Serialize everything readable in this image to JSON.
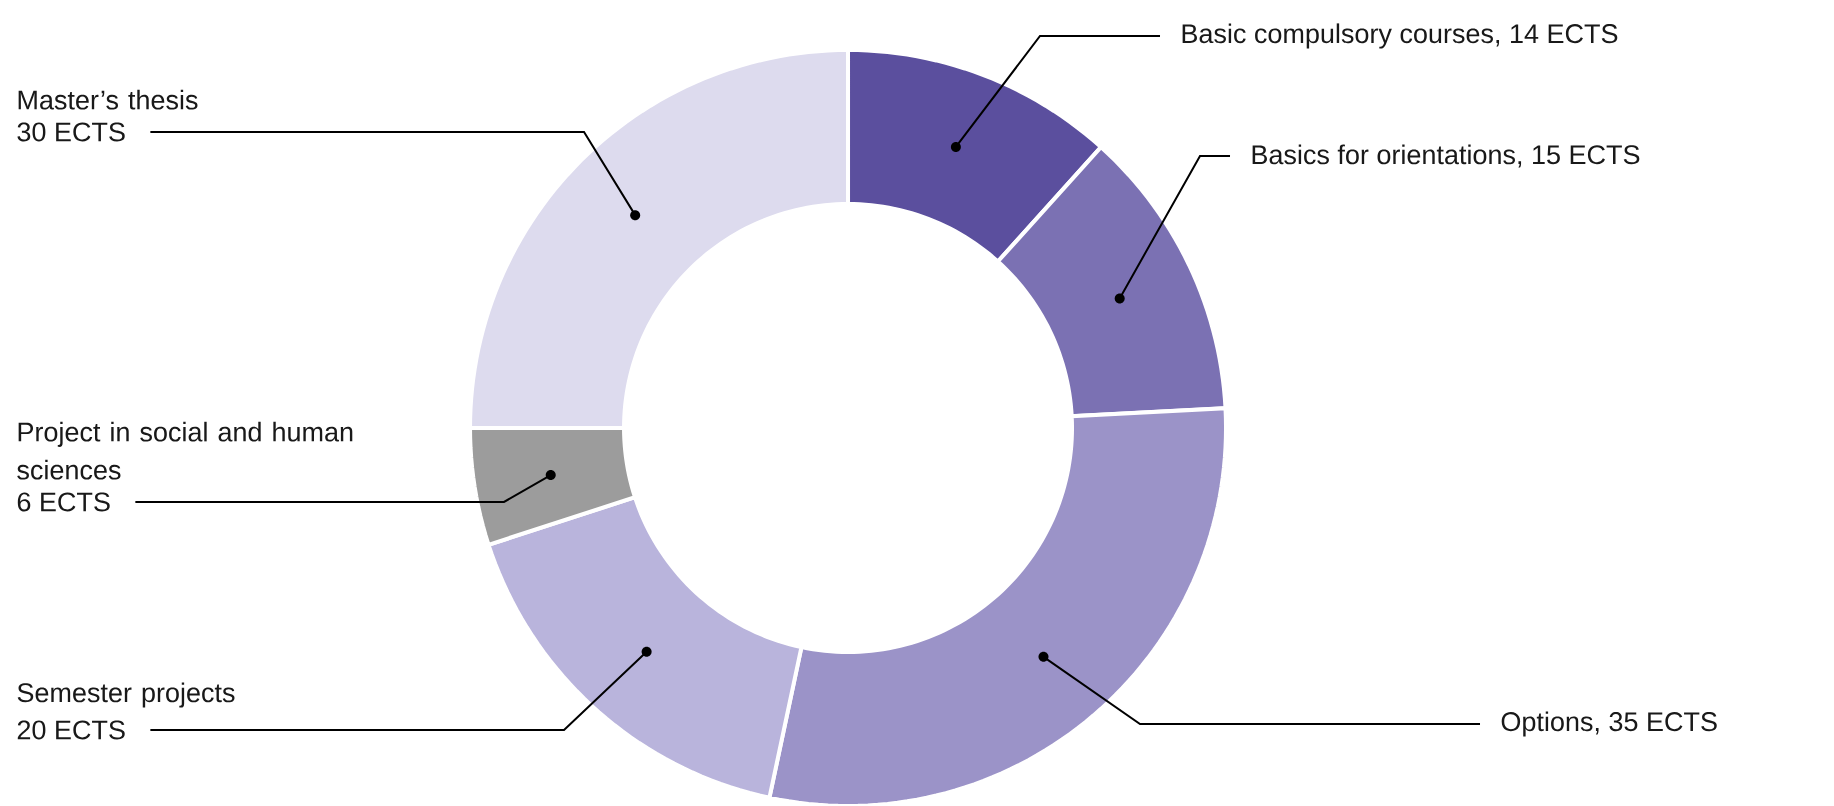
{
  "chart_data": {
    "type": "donut",
    "categories": [
      "Basic compulsory courses, 14 ECTS",
      "Basics for orientations, 15 ECTS",
      "Options, 35 ECTS",
      "Semester projects",
      "Project in social and human sciences",
      "Master’s thesis"
    ],
    "values": [
      14,
      15,
      35,
      20,
      6,
      30
    ],
    "value_labels": [
      null,
      null,
      null,
      "20 ECTS",
      "6 ECTS",
      "30 ECTS"
    ],
    "colors": [
      "#5b4f9e",
      "#7b71b3",
      "#9b93c8",
      "#b9b4dc",
      "#9c9c9c",
      "#dddbee"
    ]
  }
}
